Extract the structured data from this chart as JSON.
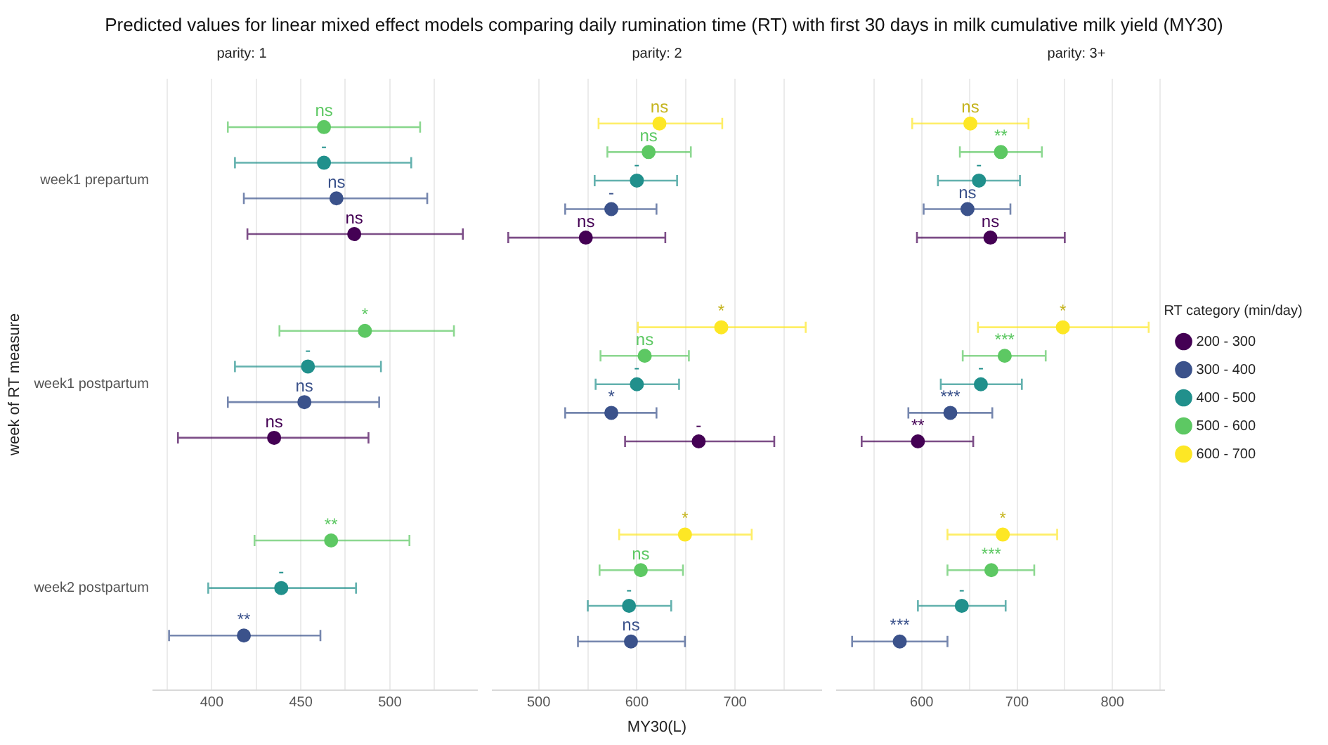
{
  "chart_data": [
    {
      "type": "scatter",
      "orientation": "horizontal",
      "title": "Predicted values for linear mixed effect models comparing daily rumination time (RT) with first 30 days in milk cumulative milk yield (MY30)",
      "subtitle": "parity: 1",
      "ylabel": "week of RT measure",
      "categories": [
        "week1 prepartum",
        "week1 postpartum",
        "week2 postpartum"
      ],
      "xlim": [
        367,
        549
      ],
      "xticks": [
        {
          "value": 375,
          "label": null
        },
        400,
        {
          "value": 425,
          "label": null
        },
        450,
        {
          "value": 475,
          "label": null
        },
        500,
        {
          "value": 525,
          "label": null
        }
      ],
      "grid": "x",
      "marker": "circle",
      "series": [
        {
          "color": "#440154",
          "values": [
            480,
            435,
            null
          ],
          "errors": [
            [
              420,
              541
            ],
            [
              381,
              488
            ],
            null
          ],
          "value_labels": [
            "ns",
            "ns",
            null
          ]
        },
        {
          "color": "#3b528b",
          "values": [
            470,
            452,
            418
          ],
          "errors": [
            [
              418,
              521
            ],
            [
              409,
              494
            ],
            [
              376,
              461
            ]
          ],
          "value_labels": [
            "ns",
            "ns",
            "**"
          ]
        },
        {
          "color": "#21908c",
          "values": [
            463,
            454,
            439
          ],
          "errors": [
            [
              413,
              512
            ],
            [
              413,
              495
            ],
            [
              398,
              481
            ]
          ],
          "value_labels": [
            "-",
            "-",
            "-"
          ]
        },
        {
          "color": "#5dc863",
          "values": [
            463,
            486,
            467
          ],
          "errors": [
            [
              409,
              517
            ],
            [
              438,
              536
            ],
            [
              424,
              511
            ]
          ],
          "value_labels": [
            "ns",
            "*",
            "**"
          ]
        },
        {
          "color": "#fde725",
          "values": [
            null,
            null,
            null
          ],
          "errors": [
            null,
            null,
            null
          ],
          "value_labels": [
            null,
            null,
            null
          ]
        }
      ]
    },
    {
      "type": "scatter",
      "orientation": "horizontal",
      "subtitle": "parity: 2",
      "xlabel": "MY30(L)",
      "tick_labels": "x",
      "xlim": [
        453,
        788
      ],
      "xticks": [
        500,
        {
          "value": 550,
          "label": null
        },
        600,
        {
          "value": 650,
          "label": null
        },
        700,
        {
          "value": 750,
          "label": null
        }
      ],
      "grid": "x",
      "marker": "circle",
      "series": [
        {
          "color": "#440154",
          "values": [
            548,
            663,
            null
          ],
          "errors": [
            [
              469,
              629
            ],
            [
              588,
              740
            ],
            null
          ],
          "value_labels": [
            "ns",
            "-",
            null
          ]
        },
        {
          "color": "#3b528b",
          "values": [
            574,
            574,
            594
          ],
          "errors": [
            [
              527,
              620
            ],
            [
              527,
              620
            ],
            [
              540,
              649
            ]
          ],
          "value_labels": [
            "-",
            "*",
            "ns"
          ]
        },
        {
          "color": "#21908c",
          "values": [
            600,
            600,
            592
          ],
          "errors": [
            [
              557,
              641
            ],
            [
              558,
              643
            ],
            [
              550,
              635
            ]
          ],
          "value_labels": [
            "-",
            "-",
            "-"
          ]
        },
        {
          "color": "#5dc863",
          "values": [
            612,
            608,
            604
          ],
          "errors": [
            [
              570,
              655
            ],
            [
              563,
              653
            ],
            [
              562,
              647
            ]
          ],
          "value_labels": [
            "ns",
            "ns",
            "ns"
          ]
        },
        {
          "color": "#fde725",
          "values": [
            623,
            686,
            649
          ],
          "errors": [
            [
              561,
              687
            ],
            [
              601,
              772
            ],
            [
              582,
              717
            ]
          ],
          "value_labels": [
            "ns",
            "*",
            "*"
          ]
        }
      ]
    },
    {
      "type": "scatter",
      "orientation": "horizontal",
      "subtitle": "parity: 3+",
      "tick_labels": "x",
      "legend": "right",
      "legend_title": "RT category (min/day)",
      "xlim": [
        511,
        854
      ],
      "xticks": [
        {
          "value": 550,
          "label": null
        },
        600,
        {
          "value": 650,
          "label": null
        },
        700,
        {
          "value": 750,
          "label": null
        },
        800,
        {
          "value": 850,
          "label": null
        }
      ],
      "grid": "x",
      "marker": "circle",
      "series": [
        {
          "name": "200 - 300",
          "color": "#440154",
          "values": [
            672,
            596,
            null
          ],
          "errors": [
            [
              595,
              750
            ],
            [
              537,
              654
            ],
            null
          ],
          "value_labels": [
            "ns",
            "**",
            null
          ]
        },
        {
          "name": "300 - 400",
          "color": "#3b528b",
          "values": [
            648,
            630,
            577
          ],
          "errors": [
            [
              602,
              693
            ],
            [
              586,
              674
            ],
            [
              527,
              627
            ]
          ],
          "value_labels": [
            "ns",
            "***",
            "***"
          ]
        },
        {
          "name": "400 - 500",
          "color": "#21908c",
          "values": [
            660,
            662,
            642
          ],
          "errors": [
            [
              617,
              703
            ],
            [
              620,
              705
            ],
            [
              596,
              688
            ]
          ],
          "value_labels": [
            "-",
            "-",
            "-"
          ]
        },
        {
          "name": "500 - 600",
          "color": "#5dc863",
          "values": [
            683,
            687,
            673
          ],
          "errors": [
            [
              640,
              726
            ],
            [
              643,
              730
            ],
            [
              627,
              718
            ]
          ],
          "value_labels": [
            "**",
            "***",
            "***"
          ]
        },
        {
          "name": "600 - 700",
          "color": "#fde725",
          "values": [
            651,
            748,
            685
          ],
          "errors": [
            [
              590,
              712
            ],
            [
              659,
              838
            ],
            [
              627,
              742
            ]
          ],
          "value_labels": [
            "ns",
            "*",
            "*"
          ]
        }
      ]
    }
  ]
}
